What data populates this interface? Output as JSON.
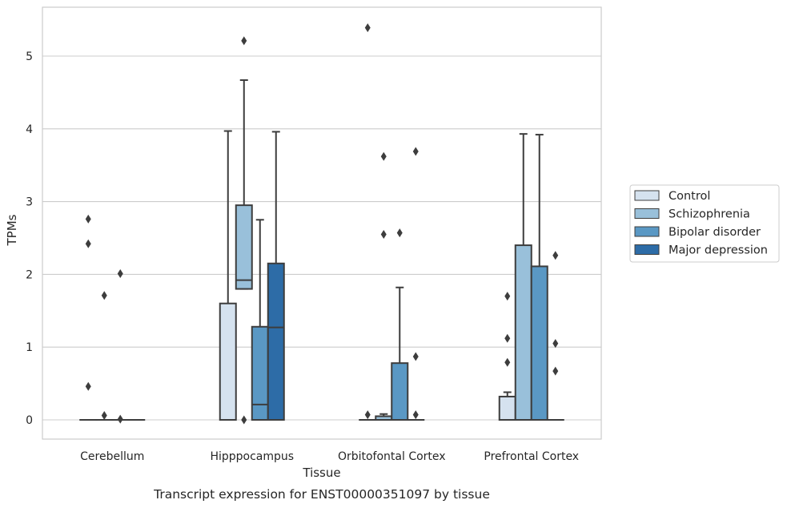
{
  "caption": "Transcript expression for ENST00000351097 by tissue",
  "chart_data": {
    "type": "box",
    "xlabel": "Tissue",
    "ylabel": "TPMs",
    "ylim": [
      -0.27,
      5.66
    ],
    "yticks": [
      0,
      1,
      2,
      3,
      4,
      5
    ],
    "grid": "horizontal",
    "legend_position": "right",
    "categories": [
      "Cerebellum",
      "Hipppocampus",
      "Orbitofontal Cortex",
      "Prefrontal Cortex"
    ],
    "series": [
      {
        "name": "Control",
        "color": "#d5e2ef",
        "boxes": [
          {
            "q1": 0,
            "median": 0,
            "q3": 0,
            "whisker_low": 0,
            "whisker_high": 0,
            "outliers": [
              2.76,
              2.42,
              0.46
            ]
          },
          {
            "q1": 0,
            "median": 0,
            "q3": 1.6,
            "whisker_low": 0,
            "whisker_high": 3.97,
            "outliers": []
          },
          {
            "q1": 0,
            "median": 0,
            "q3": 0,
            "whisker_low": 0,
            "whisker_high": 0,
            "outliers": [
              5.39,
              0.07
            ]
          },
          {
            "q1": 0,
            "median": 0,
            "q3": 0.32,
            "whisker_low": 0,
            "whisker_high": 0.38,
            "outliers": [
              1.7,
              1.12,
              0.79
            ]
          }
        ]
      },
      {
        "name": "Schizophrenia",
        "color": "#99c0da",
        "boxes": [
          {
            "q1": 0,
            "median": 0,
            "q3": 0,
            "whisker_low": 0,
            "whisker_high": 0,
            "outliers": [
              1.71,
              0.06
            ]
          },
          {
            "q1": 1.8,
            "median": 1.92,
            "q3": 2.95,
            "whisker_low": 1.8,
            "whisker_high": 4.67,
            "outliers": [
              5.21,
              0
            ]
          },
          {
            "q1": 0,
            "median": 0.05,
            "q3": 0.05,
            "whisker_low": 0,
            "whisker_high": 0.08,
            "outliers": [
              3.62,
              2.55
            ]
          },
          {
            "q1": 0,
            "median": 0,
            "q3": 2.4,
            "whisker_low": 0,
            "whisker_high": 3.93,
            "outliers": []
          }
        ]
      },
      {
        "name": "Bipolar disorder",
        "color": "#5a98c4",
        "boxes": [
          {
            "q1": 0,
            "median": 0,
            "q3": 0,
            "whisker_low": 0,
            "whisker_high": 0,
            "outliers": [
              2.01,
              0.01
            ]
          },
          {
            "q1": 0,
            "median": 0.21,
            "q3": 1.28,
            "whisker_low": 0,
            "whisker_high": 2.75,
            "outliers": []
          },
          {
            "q1": 0,
            "median": 0,
            "q3": 0.78,
            "whisker_low": 0,
            "whisker_high": 1.82,
            "outliers": [
              2.57
            ]
          },
          {
            "q1": 0,
            "median": 0,
            "q3": 2.11,
            "whisker_low": 0,
            "whisker_high": 3.92,
            "outliers": []
          }
        ]
      },
      {
        "name": "Major depression",
        "color": "#2d6ca7",
        "boxes": [
          {
            "q1": 0,
            "median": 0,
            "q3": 0,
            "whisker_low": 0,
            "whisker_high": 0,
            "outliers": []
          },
          {
            "q1": 0,
            "median": 1.27,
            "q3": 2.15,
            "whisker_low": 0,
            "whisker_high": 3.96,
            "outliers": []
          },
          {
            "q1": 0,
            "median": 0,
            "q3": 0,
            "whisker_low": 0,
            "whisker_high": 0,
            "outliers": [
              3.69,
              0.87,
              0.07
            ]
          },
          {
            "q1": 0,
            "median": 0,
            "q3": 0,
            "whisker_low": 0,
            "whisker_high": 0,
            "outliers": [
              2.26,
              1.05,
              0.67
            ]
          }
        ]
      }
    ]
  }
}
